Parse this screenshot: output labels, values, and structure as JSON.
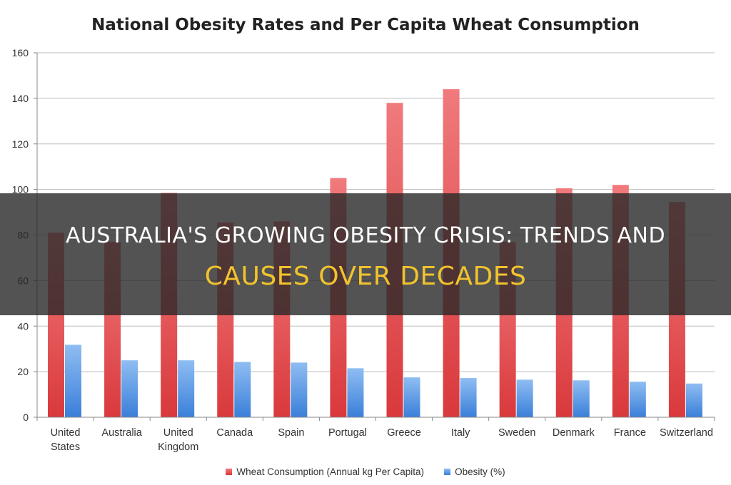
{
  "chart_data": {
    "type": "bar",
    "title": "National Obesity Rates and Per Capita Wheat Consumption",
    "categories": [
      "United States",
      "Australia",
      "United Kingdom",
      "Canada",
      "Spain",
      "Portugal",
      "Greece",
      "Italy",
      "Sweden",
      "Denmark",
      "France",
      "Switzerland"
    ],
    "category_lines": [
      [
        "United",
        "States"
      ],
      [
        "Australia"
      ],
      [
        "United",
        "Kingdom"
      ],
      [
        "Canada"
      ],
      [
        "Spain"
      ],
      [
        "Portugal"
      ],
      [
        "Greece"
      ],
      [
        "Italy"
      ],
      [
        "Sweden"
      ],
      [
        "Denmark"
      ],
      [
        "France"
      ],
      [
        "Switzerland"
      ]
    ],
    "series": [
      {
        "name": "Wheat Consumption (Annual kg Per Capita)",
        "color": "#e8575a",
        "values": [
          81,
          77,
          98.5,
          85.5,
          86,
          105,
          138,
          144,
          77,
          100.5,
          102,
          94.5
        ]
      },
      {
        "name": "Obesity (%)",
        "color": "#5b9be5",
        "values": [
          31.8,
          25,
          25,
          24.3,
          24,
          21.5,
          17.5,
          17.2,
          16.5,
          16.2,
          15.6,
          14.8
        ]
      }
    ],
    "ylim": [
      0,
      160
    ],
    "yticks": [
      0,
      20,
      40,
      60,
      80,
      100,
      120,
      140,
      160
    ],
    "grid": true,
    "legend_position": "bottom"
  },
  "overlay": {
    "line1": "AUSTRALIA'S GROWING OBESITY CRISIS: TRENDS AND",
    "line2": "CAUSES OVER DECADES",
    "line2_color": "#f2c32c"
  }
}
